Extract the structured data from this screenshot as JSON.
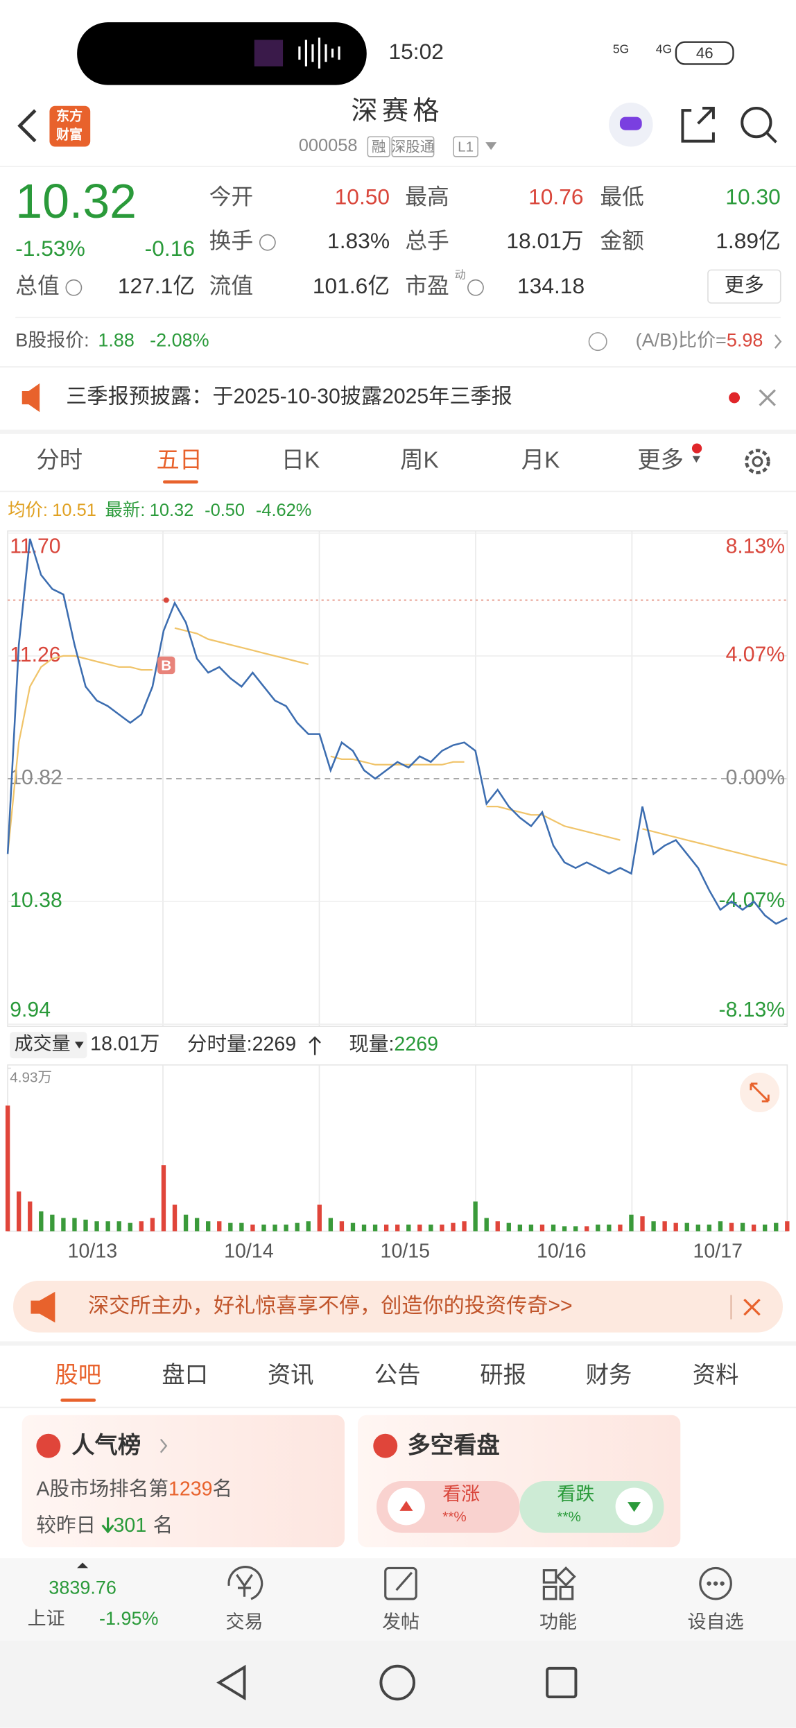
{
  "status_bar": {
    "time": "15:02",
    "network": "5G",
    "network2": "4G",
    "battery": "46"
  },
  "header": {
    "logo": [
      "东方",
      "财富"
    ],
    "title": "深赛格",
    "code": "000058",
    "badges": [
      "融",
      "深股通",
      "L1"
    ]
  },
  "quote": {
    "price": "10.32",
    "change_pct": "-1.53%",
    "change": "-0.16",
    "rows": [
      [
        [
          "今开",
          "10.50"
        ],
        [
          "最高",
          "10.76"
        ],
        [
          "最低",
          "10.30"
        ]
      ],
      [
        [
          "换手",
          "1.83%"
        ],
        [
          "总手",
          "18.01万"
        ],
        [
          "金额",
          "1.89亿"
        ]
      ],
      [
        [
          "总值",
          "127.1亿"
        ],
        [
          "流值",
          "101.6亿"
        ],
        [
          "市盈",
          "134.18"
        ]
      ]
    ],
    "pe_mark": "动",
    "more": "更多",
    "b_share": {
      "label": "B股报价:",
      "price": "1.88",
      "change": "-2.08%",
      "ratio_label": "(A/B)比价=",
      "ratio": "5.98"
    }
  },
  "notice": "三季报预披露：于2025-10-30披露2025年三季报",
  "chart_tabs": [
    "分时",
    "五日",
    "日K",
    "周K",
    "月K",
    "更多"
  ],
  "info_line": {
    "avg_label": "均价:",
    "avg": "10.51",
    "last_label": "最新:",
    "last": "10.32",
    "change": "-0.50",
    "change_pct": "-4.62%"
  },
  "chart_data": [
    {
      "type": "line",
      "ylim": [
        9.94,
        11.7
      ],
      "yticks": [
        {
          "value": 11.7,
          "label": "11.70"
        },
        11.26,
        10.82,
        10.38,
        9.94
      ],
      "y2lim": [
        -8.13,
        8.13
      ],
      "y2ticks": [
        {
          "value": 8.13,
          "label": "8.13%"
        },
        {
          "value": 4.07,
          "label": "4.07%"
        },
        {
          "value": 0,
          "label": "0.00%"
        },
        {
          "value": -4.07,
          "label": "-4.07%"
        },
        {
          "value": -8.13,
          "label": "-8.13%"
        }
      ],
      "high_line": 11.46,
      "marker": "B",
      "series": [
        {
          "color": "#3c6db0",
          "values": [
            10.55,
            11.3,
            11.68,
            11.55,
            11.5,
            11.48,
            11.3,
            11.15,
            11.1,
            11.08,
            11.05,
            11.02,
            11.05,
            11.15,
            11.35,
            11.45,
            11.38,
            11.25,
            11.2,
            11.22,
            11.18,
            11.15,
            11.2,
            11.15,
            11.1,
            11.08,
            11.02,
            10.98,
            10.98,
            10.85,
            10.95,
            10.92,
            10.85,
            10.82,
            10.85,
            10.88,
            10.86,
            10.9,
            10.88,
            10.92,
            10.94,
            10.95,
            10.92,
            10.73,
            10.78,
            10.72,
            10.68,
            10.65,
            10.7,
            10.58,
            10.52,
            10.5,
            10.52,
            10.5,
            10.48,
            10.5,
            10.48,
            10.72,
            10.55,
            10.58,
            10.6,
            10.55,
            10.5,
            10.42,
            10.35,
            10.38,
            10.35,
            10.38,
            10.33,
            10.3,
            10.32
          ]
        },
        {
          "color": "#f0c46a",
          "values": [
            10.55,
            10.95,
            11.15,
            11.22,
            11.25,
            11.26,
            11.26,
            11.25,
            11.24,
            11.23,
            11.22,
            11.22,
            11.21,
            11.21,
            null,
            11.36,
            11.35,
            11.34,
            11.32,
            11.31,
            11.3,
            11.29,
            11.28,
            11.27,
            11.26,
            11.25,
            11.24,
            11.23,
            null,
            10.9,
            10.89,
            10.89,
            10.88,
            10.87,
            10.87,
            10.87,
            10.87,
            10.87,
            10.87,
            10.87,
            10.88,
            10.88,
            null,
            10.72,
            10.72,
            10.71,
            10.7,
            10.69,
            10.69,
            10.67,
            10.65,
            10.64,
            10.63,
            10.62,
            10.61,
            10.6,
            null,
            10.64,
            10.63,
            10.62,
            10.61,
            10.6,
            10.59,
            10.58,
            10.57,
            10.56,
            10.55,
            10.54,
            10.53,
            10.52,
            10.51
          ]
        }
      ]
    },
    {
      "type": "bar",
      "ylim": [
        0,
        4.93
      ],
      "yticks": [
        {
          "value": 4.93,
          "label": "4.93万"
        }
      ],
      "up_color": "#e0453a",
      "down_color": "#3a9a3a",
      "values": [
        3.8,
        1.2,
        0.9,
        0.6,
        0.5,
        0.4,
        0.4,
        0.35,
        0.3,
        0.3,
        0.3,
        0.25,
        0.3,
        0.4,
        2.0,
        0.8,
        0.5,
        0.4,
        0.3,
        0.3,
        0.25,
        0.25,
        0.2,
        0.2,
        0.2,
        0.2,
        0.25,
        0.3,
        0.8,
        0.4,
        0.3,
        0.25,
        0.2,
        0.2,
        0.2,
        0.2,
        0.2,
        0.2,
        0.2,
        0.2,
        0.25,
        0.3,
        0.9,
        0.4,
        0.3,
        0.25,
        0.2,
        0.2,
        0.2,
        0.2,
        0.15,
        0.15,
        0.15,
        0.2,
        0.2,
        0.2,
        0.5,
        0.45,
        0.3,
        0.3,
        0.25,
        0.25,
        0.2,
        0.2,
        0.3,
        0.25,
        0.25,
        0.2,
        0.2,
        0.25,
        0.3
      ],
      "day_labels": [
        "10/13",
        "10/14",
        "10/15",
        "10/16",
        "10/17"
      ]
    }
  ],
  "volume_bar": {
    "label": "成交量",
    "total": "18.01万",
    "tick_label": "分时量:",
    "tick": "2269",
    "current_label": "现量:",
    "current": "2269"
  },
  "banner": "深交所主办，好礼惊喜享不停，创造你的投资传奇>>",
  "tabs": [
    "股吧",
    "盘口",
    "资讯",
    "公告",
    "研报",
    "财务",
    "资料"
  ],
  "cards": {
    "popularity": {
      "title": "人气榜",
      "rank_prefix": "A股市场排名第",
      "rank": "1239",
      "rank_suffix": "名",
      "change_prefix": "较昨日",
      "change": "301",
      "change_suffix": "名"
    },
    "sentiment": {
      "title": "多空看盘",
      "bull": "看涨",
      "bull_pct": "**%",
      "bear": "看跌",
      "bear_pct": "**%"
    }
  },
  "bottom_nav": {
    "index_value": "3839.76",
    "index_name": "上证",
    "index_change": "-1.95%",
    "items": [
      "交易",
      "发帖",
      "功能",
      "设自选"
    ]
  }
}
